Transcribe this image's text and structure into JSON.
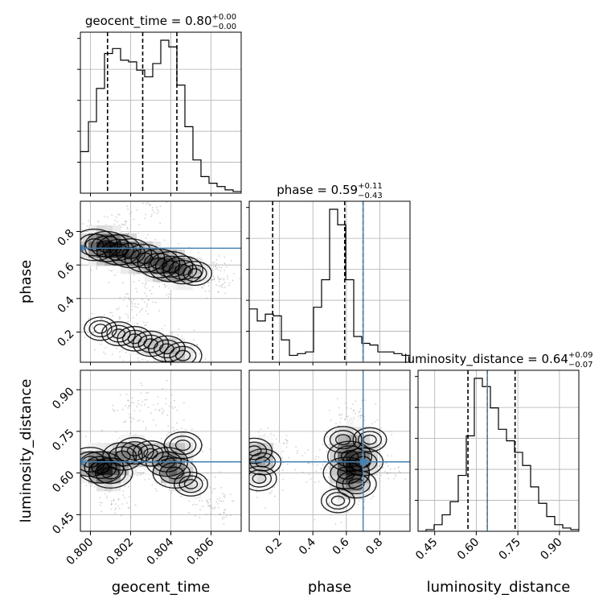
{
  "chart_data": {
    "type": "corner",
    "parameters": [
      "geocent_time",
      "phase",
      "luminosity_distance"
    ],
    "truths": {
      "phase": 0.7,
      "luminosity_distance": 0.64
    },
    "panel_titles": [
      {
        "param": "geocent_time",
        "base": "geocent_time = 0.80",
        "plus": "+0.00",
        "minus": "−0.00"
      },
      {
        "param": "phase",
        "base": "phase = 0.59",
        "plus": "+0.11",
        "minus": "−0.43"
      },
      {
        "param": "luminosity_distance",
        "base": "luminosity_distance = 0.64",
        "plus": "+0.09",
        "minus": "−0.07"
      }
    ],
    "ranges": {
      "geocent_time": [
        0.7995,
        0.8075
      ],
      "phase": [
        0.02,
        0.98
      ],
      "luminosity_distance": [
        0.39,
        0.97
      ]
    },
    "ticks": {
      "geocent_time": [
        "0.800",
        "0.802",
        "0.804",
        "0.806"
      ],
      "phase": [
        "0.2",
        "0.4",
        "0.6",
        "0.8"
      ],
      "luminosity_distance": [
        "0.45",
        "0.60",
        "0.75",
        "0.90"
      ]
    },
    "hist_geocent_time": {
      "edges_start": 0.7995,
      "bin_width": 0.0004,
      "counts": [
        0.25,
        0.43,
        0.63,
        0.84,
        0.87,
        0.8,
        0.79,
        0.74,
        0.7,
        0.78,
        0.92,
        0.88,
        0.65,
        0.4,
        0.2,
        0.1,
        0.06,
        0.04,
        0.02,
        0.01
      ],
      "quantiles": [
        0.80085,
        0.8026,
        0.8043
      ]
    },
    "hist_phase": {
      "edges_start": 0.02,
      "bin_width": 0.048,
      "counts": [
        0.31,
        0.24,
        0.28,
        0.27,
        0.13,
        0.04,
        0.05,
        0.06,
        0.32,
        0.48,
        0.89,
        0.8,
        0.48,
        0.15,
        0.11,
        0.1,
        0.06,
        0.06,
        0.05,
        0.04
      ],
      "quantiles": [
        0.16,
        0.59,
        0.7
      ]
    },
    "hist_luminosity_distance": {
      "edges_start": 0.39,
      "bin_width": 0.029,
      "counts": [
        0.0,
        0.01,
        0.04,
        0.1,
        0.18,
        0.34,
        0.58,
        0.93,
        0.88,
        0.75,
        0.62,
        0.55,
        0.48,
        0.4,
        0.27,
        0.17,
        0.09,
        0.04,
        0.02,
        0.01
      ],
      "quantiles": [
        0.57,
        0.64,
        0.74
      ]
    },
    "density_phase_vs_geocent_time": [
      {
        "x": 0.8002,
        "y": 0.72,
        "w": 1.0
      },
      {
        "x": 0.8008,
        "y": 0.71,
        "w": 0.9
      },
      {
        "x": 0.8014,
        "y": 0.69,
        "w": 0.9
      },
      {
        "x": 0.802,
        "y": 0.67,
        "w": 0.8
      },
      {
        "x": 0.8027,
        "y": 0.64,
        "w": 0.7
      },
      {
        "x": 0.8034,
        "y": 0.61,
        "w": 0.8
      },
      {
        "x": 0.804,
        "y": 0.59,
        "w": 0.9
      },
      {
        "x": 0.8046,
        "y": 0.57,
        "w": 0.7
      },
      {
        "x": 0.8052,
        "y": 0.55,
        "w": 0.4
      },
      {
        "x": 0.806,
        "y": 0.53,
        "w": 0.2
      },
      {
        "x": 0.8066,
        "y": 0.52,
        "w": 0.1
      },
      {
        "x": 0.8005,
        "y": 0.22,
        "w": 0.35
      },
      {
        "x": 0.8014,
        "y": 0.19,
        "w": 0.4
      },
      {
        "x": 0.8022,
        "y": 0.16,
        "w": 0.45
      },
      {
        "x": 0.803,
        "y": 0.13,
        "w": 0.5
      },
      {
        "x": 0.8038,
        "y": 0.1,
        "w": 0.55
      },
      {
        "x": 0.8046,
        "y": 0.06,
        "w": 0.6
      },
      {
        "x": 0.8016,
        "y": 0.86,
        "w": 0.1
      },
      {
        "x": 0.803,
        "y": 0.92,
        "w": 0.05
      },
      {
        "x": 0.802,
        "y": 0.35,
        "w": 0.08
      },
      {
        "x": 0.8028,
        "y": 0.42,
        "w": 0.06
      }
    ],
    "density_ld_vs_geocent_time": [
      {
        "x": 0.8,
        "y": 0.64,
        "w": 0.8
      },
      {
        "x": 0.8005,
        "y": 0.62,
        "w": 1.0
      },
      {
        "x": 0.801,
        "y": 0.6,
        "w": 0.9
      },
      {
        "x": 0.8016,
        "y": 0.66,
        "w": 0.7
      },
      {
        "x": 0.8022,
        "y": 0.68,
        "w": 0.6
      },
      {
        "x": 0.803,
        "y": 0.67,
        "w": 0.5
      },
      {
        "x": 0.8038,
        "y": 0.64,
        "w": 0.8
      },
      {
        "x": 0.8042,
        "y": 0.6,
        "w": 0.9
      },
      {
        "x": 0.8046,
        "y": 0.7,
        "w": 0.6
      },
      {
        "x": 0.805,
        "y": 0.56,
        "w": 0.4
      },
      {
        "x": 0.8056,
        "y": 0.52,
        "w": 0.25
      },
      {
        "x": 0.8063,
        "y": 0.48,
        "w": 0.15
      },
      {
        "x": 0.802,
        "y": 0.82,
        "w": 0.2
      },
      {
        "x": 0.8035,
        "y": 0.85,
        "w": 0.15
      },
      {
        "x": 0.8012,
        "y": 0.5,
        "w": 0.2
      }
    ],
    "density_ld_vs_phase": [
      {
        "x": 0.05,
        "y": 0.68,
        "w": 0.5
      },
      {
        "x": 0.1,
        "y": 0.64,
        "w": 0.55
      },
      {
        "x": 0.08,
        "y": 0.58,
        "w": 0.45
      },
      {
        "x": 0.16,
        "y": 0.7,
        "w": 0.3
      },
      {
        "x": 0.6,
        "y": 0.6,
        "w": 1.0
      },
      {
        "x": 0.62,
        "y": 0.66,
        "w": 0.9
      },
      {
        "x": 0.58,
        "y": 0.72,
        "w": 0.6
      },
      {
        "x": 0.66,
        "y": 0.56,
        "w": 0.7
      },
      {
        "x": 0.7,
        "y": 0.64,
        "w": 0.7
      },
      {
        "x": 0.64,
        "y": 0.8,
        "w": 0.3
      },
      {
        "x": 0.55,
        "y": 0.5,
        "w": 0.4
      },
      {
        "x": 0.74,
        "y": 0.72,
        "w": 0.4
      },
      {
        "x": 0.4,
        "y": 0.62,
        "w": 0.1
      },
      {
        "x": 0.85,
        "y": 0.62,
        "w": 0.12
      }
    ],
    "colors": {
      "line": "#000000",
      "truth": "#4682b4",
      "grid": "#b0b0b0",
      "scatter": "#9a9a9a"
    }
  }
}
